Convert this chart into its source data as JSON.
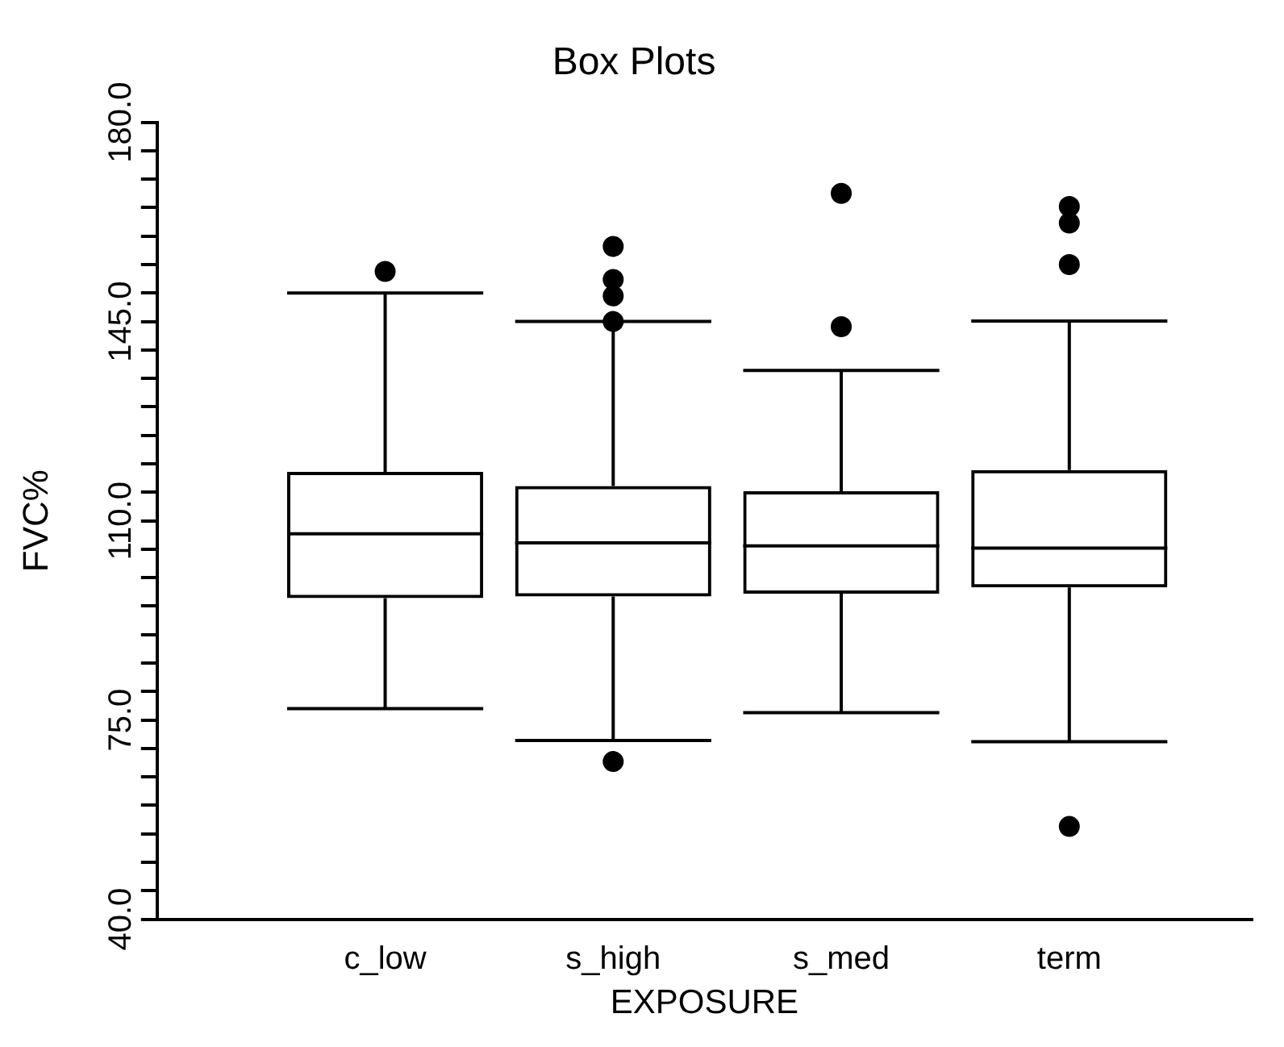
{
  "chart_data": {
    "type": "box",
    "title": "Box Plots",
    "xlabel": "EXPOSURE",
    "ylabel": "FVC%",
    "categories": [
      "c_low",
      "s_high",
      "s_med",
      "term"
    ],
    "boxes": [
      {
        "low": 77,
        "q1": 96.4,
        "median": 107.7,
        "q3": 118.6,
        "high": 150,
        "outliers": [
          153.8
        ]
      },
      {
        "low": 71.4,
        "q1": 96.7,
        "median": 106.1,
        "q3": 116.1,
        "high": 145,
        "outliers": [
          158.2,
          152.4,
          149.5,
          145,
          67.7
        ]
      },
      {
        "low": 76.3,
        "q1": 97.2,
        "median": 105.6,
        "q3": 115.2,
        "high": 136.4,
        "outliers": [
          167.5,
          144.1
        ]
      },
      {
        "low": 71.2,
        "q1": 98.3,
        "median": 105.2,
        "q3": 118.9,
        "high": 145.1,
        "outliers": [
          165.2,
          162.3,
          155,
          56.3
        ]
      }
    ],
    "color": "#000000",
    "ylim": [
      40,
      180
    ],
    "yticks": [
      {
        "value": 40,
        "label": "40.0"
      },
      {
        "value": 45,
        "label": null
      },
      {
        "value": 50,
        "label": null
      },
      {
        "value": 55,
        "label": null
      },
      {
        "value": 60,
        "label": null
      },
      {
        "value": 65,
        "label": null
      },
      {
        "value": 70,
        "label": null
      },
      {
        "value": 75,
        "label": "75.0"
      },
      {
        "value": 80,
        "label": null
      },
      {
        "value": 85,
        "label": null
      },
      {
        "value": 90,
        "label": null
      },
      {
        "value": 95,
        "label": null
      },
      {
        "value": 100,
        "label": null
      },
      {
        "value": 105,
        "label": null
      },
      {
        "value": 110,
        "label": "110.0"
      },
      {
        "value": 115,
        "label": null
      },
      {
        "value": 120,
        "label": null
      },
      {
        "value": 125,
        "label": null
      },
      {
        "value": 130,
        "label": null
      },
      {
        "value": 135,
        "label": null
      },
      {
        "value": 140,
        "label": null
      },
      {
        "value": 145,
        "label": "145.0"
      },
      {
        "value": 150,
        "label": null
      },
      {
        "value": 155,
        "label": null
      },
      {
        "value": 160,
        "label": null
      },
      {
        "value": 165,
        "label": null
      },
      {
        "value": 170,
        "label": null
      },
      {
        "value": 175,
        "label": null
      },
      {
        "value": 180,
        "label": "180.0"
      }
    ],
    "grid": false,
    "legend": false,
    "marker": "circle"
  }
}
